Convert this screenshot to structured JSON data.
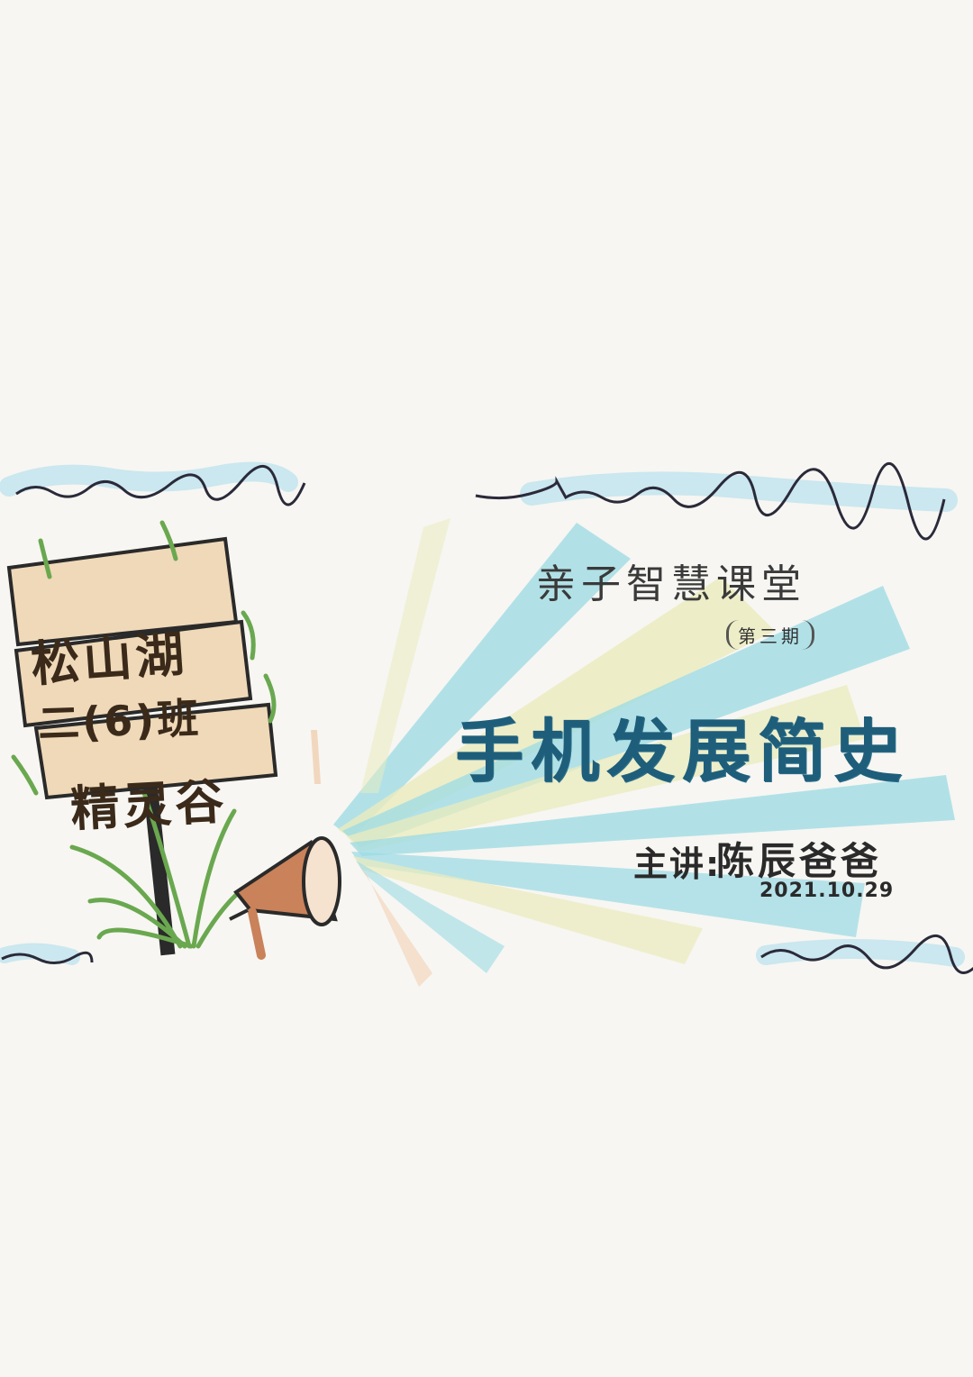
{
  "sign": {
    "line1": "松山湖",
    "line2": "二(6)班",
    "line3": "精灵谷"
  },
  "header": {
    "series": "亲子智慧课堂",
    "issue": "第三期"
  },
  "main": {
    "title": "手机发展简史"
  },
  "footer": {
    "speaker_label": "主讲:",
    "speaker_name": "陈辰爸爸",
    "date": "2021.10.29"
  },
  "colors": {
    "title": "#1e5e7a",
    "ray_blue": "#7fd4e0",
    "ray_yellow": "#eaeab0",
    "wood": "#efd9b8",
    "grass": "#6aa84f",
    "megaphone": "#c9825a"
  },
  "icons": {
    "signpost": "signpost-icon",
    "megaphone": "megaphone-icon"
  }
}
